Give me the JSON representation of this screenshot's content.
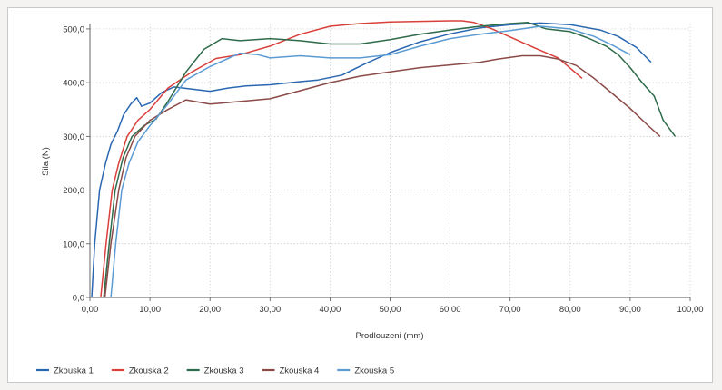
{
  "chart_data": {
    "type": "line",
    "title": "",
    "xlabel": "Prodlouzeni (mm)",
    "ylabel": "Sila (N)",
    "xlim": [
      0,
      100
    ],
    "ylim": [
      0,
      500
    ],
    "x_ticks": [
      "0,00",
      "10,00",
      "20,00",
      "30,00",
      "40,00",
      "50,00",
      "60,00",
      "70,00",
      "80,00",
      "90,00",
      "100,00"
    ],
    "y_ticks": [
      "0,0",
      "100,0",
      "200,0",
      "300,0",
      "400,0",
      "500,0"
    ],
    "grid": true,
    "legend_position": "bottom-left",
    "series": [
      {
        "name": "Zkouska 1",
        "color": "#2a67b1",
        "points": [
          [
            0.3,
            0
          ],
          [
            0.8,
            100
          ],
          [
            1.6,
            200
          ],
          [
            2.6,
            250
          ],
          [
            3.5,
            285
          ],
          [
            4.6,
            310
          ],
          [
            5.6,
            340
          ],
          [
            6.8,
            360
          ],
          [
            7.8,
            372
          ],
          [
            8.6,
            356
          ],
          [
            10,
            362
          ],
          [
            12,
            382
          ],
          [
            14,
            392
          ],
          [
            17,
            388
          ],
          [
            20,
            384
          ],
          [
            23,
            390
          ],
          [
            26,
            394
          ],
          [
            30,
            396
          ],
          [
            35,
            402
          ],
          [
            38,
            405
          ],
          [
            42,
            414
          ],
          [
            46,
            436
          ],
          [
            50,
            456
          ],
          [
            55,
            476
          ],
          [
            60,
            491
          ],
          [
            65,
            502
          ],
          [
            70,
            508
          ],
          [
            75,
            511
          ],
          [
            80,
            508
          ],
          [
            85,
            498
          ],
          [
            88,
            486
          ],
          [
            91,
            466
          ],
          [
            93.5,
            438
          ]
        ]
      },
      {
        "name": "Zkouska 2",
        "color": "#d9403b",
        "points": [
          [
            1.8,
            0
          ],
          [
            2.7,
            100
          ],
          [
            3.7,
            200
          ],
          [
            4.8,
            250
          ],
          [
            6.2,
            300
          ],
          [
            8,
            330
          ],
          [
            10,
            350
          ],
          [
            13,
            390
          ],
          [
            17,
            420
          ],
          [
            21,
            445
          ],
          [
            25,
            452
          ],
          [
            30,
            468
          ],
          [
            35,
            490
          ],
          [
            40,
            505
          ],
          [
            45,
            510
          ],
          [
            50,
            513
          ],
          [
            55,
            514
          ],
          [
            60,
            515
          ],
          [
            62,
            515
          ],
          [
            64,
            512
          ],
          [
            67,
            500
          ],
          [
            70,
            485
          ],
          [
            74,
            465
          ],
          [
            78,
            446
          ],
          [
            82,
            408
          ]
        ]
      },
      {
        "name": "Zkouska 3",
        "color": "#2e6b4a",
        "points": [
          [
            2.3,
            0
          ],
          [
            3.2,
            100
          ],
          [
            4.2,
            200
          ],
          [
            5.5,
            260
          ],
          [
            7,
            300
          ],
          [
            9,
            320
          ],
          [
            11,
            332
          ],
          [
            13,
            365
          ],
          [
            16,
            420
          ],
          [
            19,
            462
          ],
          [
            22,
            482
          ],
          [
            25,
            478
          ],
          [
            30,
            482
          ],
          [
            35,
            478
          ],
          [
            40,
            472
          ],
          [
            45,
            472
          ],
          [
            50,
            480
          ],
          [
            55,
            490
          ],
          [
            60,
            498
          ],
          [
            65,
            505
          ],
          [
            70,
            510
          ],
          [
            73,
            512
          ],
          [
            76,
            500
          ],
          [
            80,
            495
          ],
          [
            83,
            483
          ],
          [
            86,
            468
          ],
          [
            88,
            452
          ],
          [
            90,
            428
          ],
          [
            92,
            400
          ],
          [
            94,
            375
          ],
          [
            95.5,
            330
          ],
          [
            97.5,
            300
          ]
        ]
      },
      {
        "name": "Zkouska 4",
        "color": "#8b4a47",
        "points": [
          [
            2.5,
            0
          ],
          [
            3.5,
            100
          ],
          [
            4.8,
            200
          ],
          [
            6,
            260
          ],
          [
            7.5,
            300
          ],
          [
            10,
            330
          ],
          [
            13,
            350
          ],
          [
            16,
            368
          ],
          [
            20,
            360
          ],
          [
            25,
            365
          ],
          [
            30,
            370
          ],
          [
            35,
            385
          ],
          [
            40,
            400
          ],
          [
            45,
            412
          ],
          [
            50,
            420
          ],
          [
            55,
            428
          ],
          [
            60,
            433
          ],
          [
            65,
            438
          ],
          [
            68,
            444
          ],
          [
            72,
            450
          ],
          [
            75,
            450
          ],
          [
            78,
            444
          ],
          [
            81,
            432
          ],
          [
            84,
            408
          ],
          [
            87,
            380
          ],
          [
            90,
            352
          ],
          [
            93,
            320
          ],
          [
            95,
            300
          ]
        ]
      },
      {
        "name": "Zkouska 5",
        "color": "#5a9bd3",
        "points": [
          [
            3.5,
            0
          ],
          [
            4.3,
            100
          ],
          [
            5.3,
            200
          ],
          [
            6.5,
            250
          ],
          [
            8,
            290
          ],
          [
            10,
            320
          ],
          [
            13,
            360
          ],
          [
            16,
            405
          ],
          [
            20,
            430
          ],
          [
            25,
            455
          ],
          [
            28,
            452
          ],
          [
            30,
            446
          ],
          [
            35,
            450
          ],
          [
            40,
            446
          ],
          [
            45,
            446
          ],
          [
            50,
            452
          ],
          [
            55,
            468
          ],
          [
            60,
            482
          ],
          [
            65,
            490
          ],
          [
            70,
            497
          ],
          [
            75,
            505
          ],
          [
            80,
            500
          ],
          [
            84,
            486
          ],
          [
            87,
            470
          ],
          [
            90,
            452
          ]
        ]
      }
    ]
  }
}
